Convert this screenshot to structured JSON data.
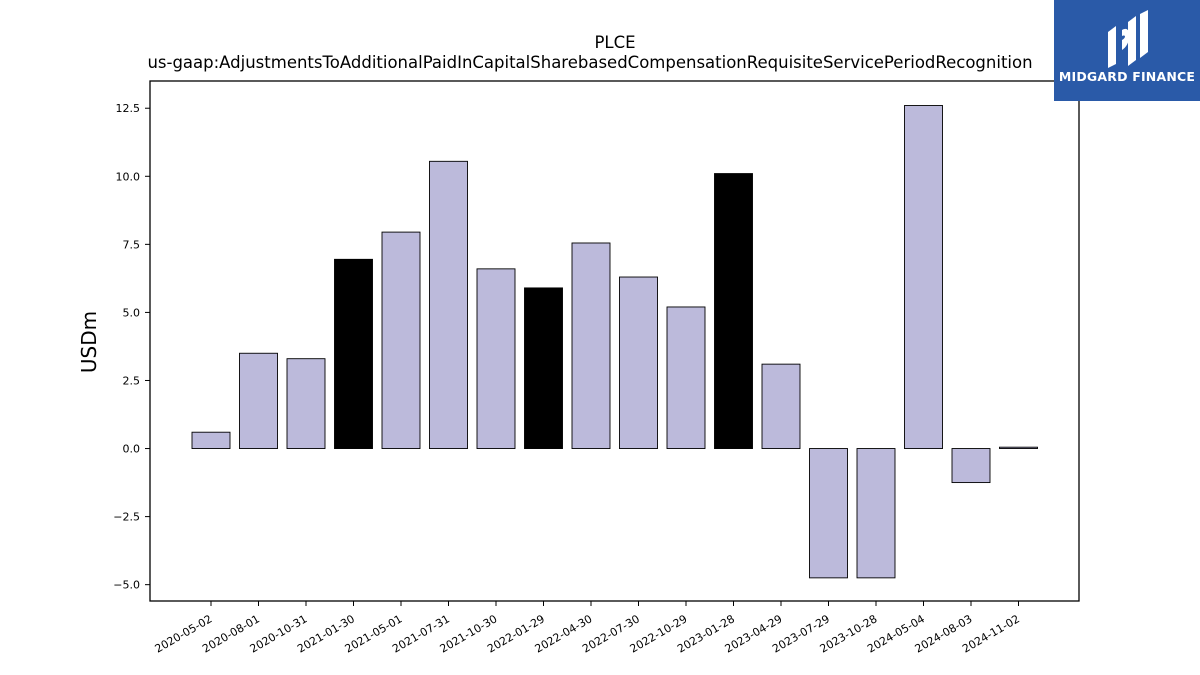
{
  "brand": {
    "name": "MIDGARD FINANCE",
    "logo_bg": "#2a5aa8",
    "logo_icon": "midgard-logo-icon"
  },
  "chart_data": {
    "type": "bar",
    "title": "PLCE",
    "subtitle": "us-gaap:AdjustmentsToAdditionalPaidInCapitalSharebasedCompensationRequisiteServicePeriodRecognition",
    "xlabel": "",
    "ylabel": "USDm",
    "ylim": [
      -5.6,
      13.5
    ],
    "yticks": [
      -5.0,
      -2.5,
      0.0,
      2.5,
      5.0,
      7.5,
      10.0,
      12.5
    ],
    "ytick_labels": [
      "−5.0",
      "−2.5",
      "0.0",
      "2.5",
      "5.0",
      "7.5",
      "10.0",
      "12.5"
    ],
    "grid": false,
    "legend": "none",
    "categories": [
      "2020-05-02",
      "2020-08-01",
      "2020-10-31",
      "2021-01-30",
      "2021-05-01",
      "2021-07-31",
      "2021-10-30",
      "2022-01-29",
      "2022-04-30",
      "2022-07-30",
      "2022-10-29",
      "2023-01-28",
      "2023-04-29",
      "2023-07-29",
      "2023-10-28",
      "2024-05-04",
      "2024-08-03",
      "2024-11-02"
    ],
    "values": [
      0.6,
      3.5,
      3.3,
      6.95,
      7.95,
      10.55,
      6.6,
      5.9,
      7.55,
      6.3,
      5.2,
      10.1,
      3.1,
      -4.75,
      -4.75,
      12.6,
      -1.25,
      0.05
    ],
    "highlight": [
      false,
      false,
      false,
      true,
      false,
      false,
      false,
      true,
      false,
      false,
      false,
      true,
      false,
      false,
      false,
      false,
      false,
      false
    ],
    "colors": {
      "bar": "#bcbadb",
      "highlight": "#000000",
      "edge": "#000000"
    }
  }
}
